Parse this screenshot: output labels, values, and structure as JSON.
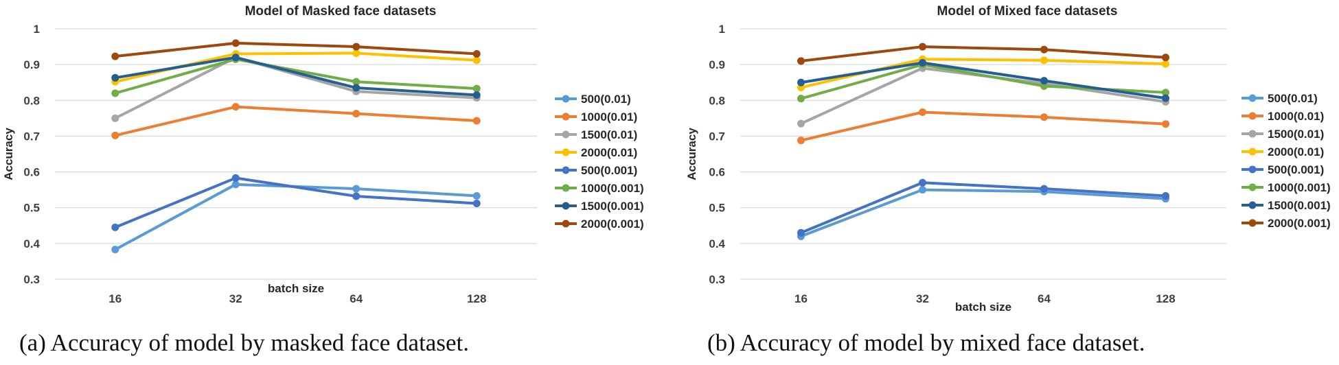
{
  "chart_data": [
    {
      "type": "line",
      "title": "Model of Masked face datasets",
      "xlabel": "batch size",
      "ylabel": "Accuracy",
      "categories": [
        "16",
        "32",
        "64",
        "128"
      ],
      "ylim": [
        0.3,
        1
      ],
      "yticks": [
        "1",
        "0.9",
        "0.8",
        "0.7",
        "0.6",
        "0.5",
        "0.4",
        "0.3"
      ],
      "legend": "right",
      "series": [
        {
          "name": "500(0.01)",
          "color": "#5B9BD5",
          "values": [
            0.383,
            0.565,
            0.553,
            0.533
          ]
        },
        {
          "name": "1000(0.01)",
          "color": "#ED7D31",
          "values": [
            0.702,
            0.782,
            0.763,
            0.743
          ]
        },
        {
          "name": "1500(0.01)",
          "color": "#A5A5A5",
          "values": [
            0.75,
            0.92,
            0.825,
            0.807
          ]
        },
        {
          "name": "2000(0.01)",
          "color": "#FFC000",
          "values": [
            0.852,
            0.93,
            0.932,
            0.912
          ]
        },
        {
          "name": "500(0.001)",
          "color": "#4472C4",
          "values": [
            0.445,
            0.583,
            0.532,
            0.512
          ]
        },
        {
          "name": "1000(0.001)",
          "color": "#70AD47",
          "values": [
            0.82,
            0.915,
            0.852,
            0.833
          ]
        },
        {
          "name": "1500(0.001)",
          "color": "#255E91",
          "values": [
            0.863,
            0.92,
            0.835,
            0.815
          ]
        },
        {
          "name": "2000(0.001)",
          "color": "#9E480E",
          "values": [
            0.923,
            0.96,
            0.95,
            0.93
          ]
        }
      ]
    },
    {
      "type": "line",
      "title": "Model of Mixed face datasets",
      "xlabel": "batch size",
      "ylabel": "Accuracy",
      "categories": [
        "16",
        "32",
        "64",
        "128"
      ],
      "ylim": [
        0.3,
        1
      ],
      "yticks": [
        "1",
        "0.9",
        "0.8",
        "0.7",
        "0.6",
        "0.5",
        "0.4",
        "0.3"
      ],
      "legend": "right",
      "series": [
        {
          "name": "500(0.01)",
          "color": "#5B9BD5",
          "values": [
            0.42,
            0.55,
            0.545,
            0.525
          ]
        },
        {
          "name": "1000(0.01)",
          "color": "#ED7D31",
          "values": [
            0.688,
            0.767,
            0.753,
            0.734
          ]
        },
        {
          "name": "1500(0.01)",
          "color": "#A5A5A5",
          "values": [
            0.735,
            0.89,
            0.847,
            0.796
          ]
        },
        {
          "name": "2000(0.01)",
          "color": "#FFC000",
          "values": [
            0.836,
            0.915,
            0.912,
            0.902
          ]
        },
        {
          "name": "500(0.001)",
          "color": "#4472C4",
          "values": [
            0.43,
            0.57,
            0.553,
            0.533
          ]
        },
        {
          "name": "1000(0.001)",
          "color": "#70AD47",
          "values": [
            0.805,
            0.9,
            0.84,
            0.822
          ]
        },
        {
          "name": "1500(0.001)",
          "color": "#255E91",
          "values": [
            0.85,
            0.905,
            0.855,
            0.806
          ]
        },
        {
          "name": "2000(0.001)",
          "color": "#9E480E",
          "values": [
            0.91,
            0.95,
            0.942,
            0.92
          ]
        }
      ]
    }
  ],
  "captions": [
    "(a) Accuracy of model by masked face dataset.",
    "(b) Accuracy of model by mixed face dataset."
  ]
}
